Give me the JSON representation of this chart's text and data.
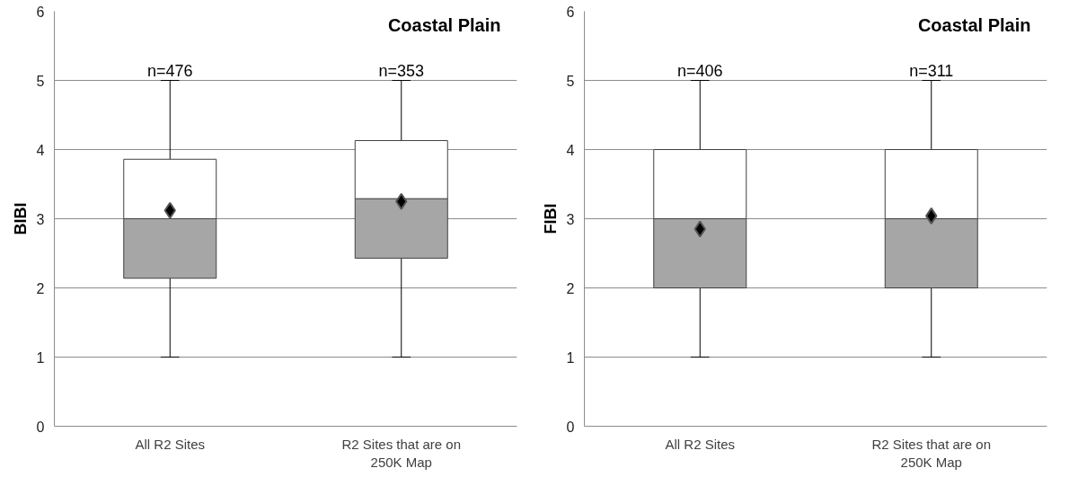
{
  "chart_data": [
    {
      "type": "box",
      "title": "Coastal Plain",
      "ylabel": "BIBI",
      "categories": [
        "All R2 Sites",
        "R2 Sites that are on 250K Map"
      ],
      "ylim": [
        0,
        6
      ],
      "yticks": [
        0,
        1,
        2,
        3,
        4,
        5,
        6
      ],
      "grid": "y",
      "series": [
        {
          "color": "#a6a6a6",
          "boxes": [
            {
              "low": 1,
              "q1": 2.14,
              "median": 3,
              "q3": 3.86,
              "high": 5,
              "mean": 3.12
            },
            {
              "low": 1,
              "q1": 2.43,
              "median": 3.29,
              "q3": 4.13,
              "high": 5,
              "mean": 3.25
            }
          ]
        }
      ],
      "marker": "diamond",
      "annotations": [
        {
          "text": "n=476",
          "x": "All R2 Sites",
          "y": 5
        },
        {
          "text": "n=353",
          "x": "R2 Sites that are on 250K Map",
          "y": 5
        }
      ]
    },
    {
      "type": "box",
      "title": "Coastal Plain",
      "ylabel": "FIBI",
      "categories": [
        "All R2 Sites",
        "R2 Sites that are on 250K Map"
      ],
      "ylim": [
        0,
        6
      ],
      "yticks": [
        0,
        1,
        2,
        3,
        4,
        5,
        6
      ],
      "grid": "y",
      "series": [
        {
          "color": "#a6a6a6",
          "boxes": [
            {
              "low": 1,
              "q1": 2,
              "median": 3,
              "q3": 4,
              "high": 5,
              "mean": 2.85
            },
            {
              "low": 1,
              "q1": 2,
              "median": 3,
              "q3": 4,
              "high": 5,
              "mean": 3.04
            }
          ]
        }
      ],
      "marker": "diamond",
      "annotations": [
        {
          "text": "n=406",
          "x": "All R2 Sites",
          "y": 5
        },
        {
          "text": "n=311",
          "x": "R2 Sites that are on 250K Map",
          "y": 5
        }
      ]
    }
  ]
}
